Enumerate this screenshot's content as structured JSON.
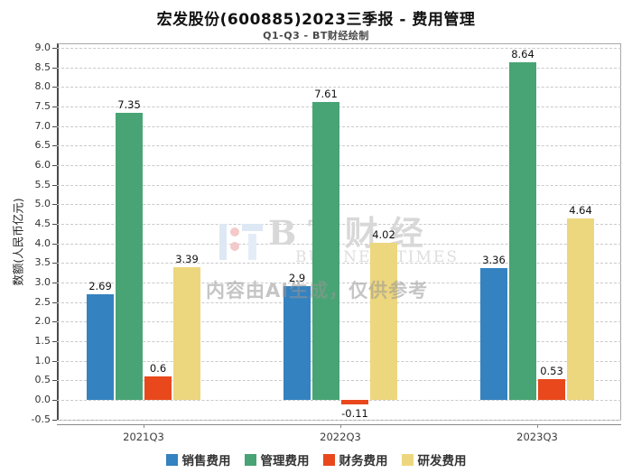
{
  "chart": {
    "title": "宏发股份(600885)2023三季报 - 费用管理",
    "subtitle": "Q1-Q3 - BT财经绘制",
    "ylabel": "数额(人民币亿元)"
  },
  "watermark": {
    "brand": "BT财经",
    "brand_sub": "BUSINESSTIMES",
    "ai_note": "内容由AI生成，仅供参考"
  },
  "chart_data": {
    "type": "bar",
    "categories": [
      "2021Q3",
      "2022Q3",
      "2023Q3"
    ],
    "series": [
      {
        "name": "销售费用",
        "color": "#3482c0",
        "values": [
          2.69,
          2.9,
          3.36
        ]
      },
      {
        "name": "管理费用",
        "color": "#48a474",
        "values": [
          7.35,
          7.61,
          8.64
        ]
      },
      {
        "name": "财务费用",
        "color": "#e8481c",
        "values": [
          0.6,
          -0.11,
          0.53
        ]
      },
      {
        "name": "研发费用",
        "color": "#edd77e",
        "values": [
          3.39,
          4.02,
          4.64
        ]
      }
    ],
    "title": "宏发股份(600885)2023三季报 - 费用管理",
    "subtitle": "Q1-Q3 - BT财经绘制",
    "xlabel": "",
    "ylabel": "数额(人民币亿元)",
    "ylim": [
      -0.5,
      9.0
    ],
    "ytick_step": 0.5,
    "grid": true,
    "legend_position": "bottom"
  }
}
